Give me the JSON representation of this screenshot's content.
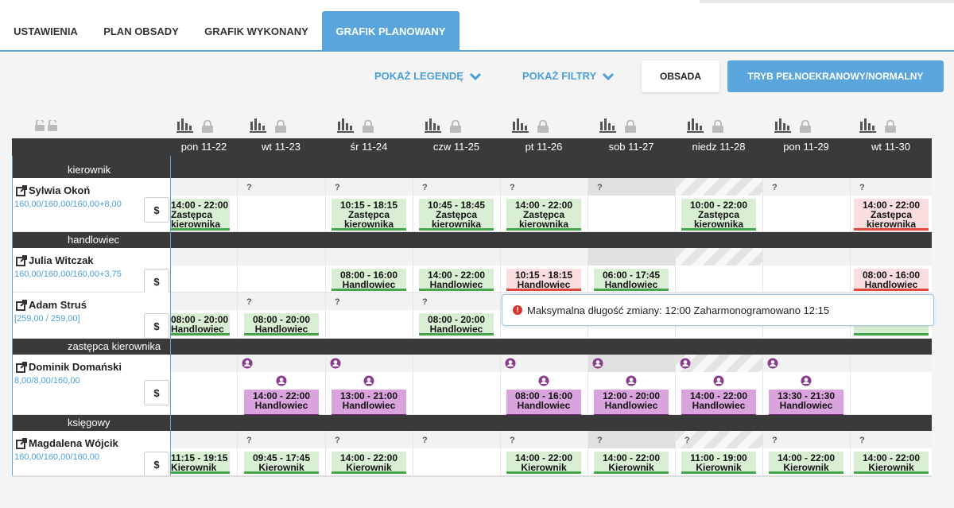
{
  "tabs": [
    "USTAWIENIA",
    "PLAN OBSADY",
    "GRAFIK WYKONANY",
    "GRAFIK PLANOWANY"
  ],
  "toolbar": {
    "legend": "POKAŻ LEGENDĘ",
    "filters": "POKAŻ FILTRY",
    "obsada": "OBSADA",
    "fullscreen": "TRYB PEŁNOEKRANOWY/NORMALNY"
  },
  "days": [
    "pon 11-22",
    "wt 11-23",
    "śr 11-24",
    "czw 11-25",
    "pt 11-26",
    "sob 11-27",
    "niedz 11-28",
    "pon 11-29",
    "wt 11-30"
  ],
  "roles": [
    "kierownik",
    "handlowiec",
    "zastępca kierownika",
    "księgowy"
  ],
  "people": [
    {
      "name": "Sylwia Okoń",
      "hours": "160,00/160,00/160,00+8,00",
      "dollar": "$"
    },
    {
      "name": "Julia Witczak",
      "hours": "160,00/160,00/160,00+3,75",
      "dollar": "$"
    },
    {
      "name": "Adam Struś",
      "hours": "[259,00 / 259,00]",
      "dollar": "$"
    },
    {
      "name": "Dominik Domański",
      "hours": "8,00/8,00/160,00",
      "dollar": "$"
    },
    {
      "name": "Magdalena Wójcik",
      "hours": "160,00/160,00/160,00",
      "dollar": "$"
    }
  ],
  "q": "?",
  "shifts": {
    "okon": [
      {
        "d": 0,
        "t": "14:00 - 22:00",
        "r": "Zastępca",
        "r2": "kierownika",
        "c": "g",
        "cut": true
      },
      {
        "d": 2,
        "t": "10:15 - 18:15",
        "r": "Zastępca",
        "r2": "kierownika",
        "c": "g"
      },
      {
        "d": 3,
        "t": "10:45 - 18:45",
        "r": "Zastępca",
        "r2": "kierownika",
        "c": "g"
      },
      {
        "d": 4,
        "t": "14:00 - 22:00",
        "r": "Zastępca",
        "r2": "kierownika",
        "c": "g"
      },
      {
        "d": 6,
        "t": "10:00 - 22:00",
        "r": "Zastępca",
        "r2": "kierownika",
        "c": "g"
      },
      {
        "d": 8,
        "t": "14:00 - 22:00",
        "r": "Zastępca",
        "r2": "kierownika",
        "c": "r"
      }
    ],
    "witczak": [
      {
        "d": 2,
        "t": "08:00 - 16:00",
        "r": "Handlowiec",
        "c": "g"
      },
      {
        "d": 3,
        "t": "14:00 - 22:00",
        "r": "Handlowiec",
        "c": "g"
      },
      {
        "d": 4,
        "t": "10:15 - 18:15",
        "r": "Handlowiec",
        "c": "r"
      },
      {
        "d": 5,
        "t": "06:00 - 17:45",
        "r": "Handlowiec",
        "c": "g"
      },
      {
        "d": 8,
        "t": "08:00 - 16:00",
        "r": "Handlowiec",
        "c": "r"
      }
    ],
    "strus": [
      {
        "d": 0,
        "t": "08:00 - 20:00",
        "r": "Handlowiec",
        "c": "g",
        "cut": true
      },
      {
        "d": 1,
        "t": "08:00 - 20:00",
        "r": "Handlowiec",
        "c": "g"
      },
      {
        "d": 3,
        "t": "08:00 - 20:00",
        "r": "Handlowiec",
        "c": "g"
      },
      {
        "d": 8,
        "t": "",
        "r": "Handlowiec",
        "c": "g"
      }
    ],
    "domanski": [
      {
        "d": 1,
        "t": "14:00 - 22:00",
        "r": "Handlowiec",
        "c": "p"
      },
      {
        "d": 2,
        "t": "13:00 - 21:00",
        "r": "Handlowiec",
        "c": "p"
      },
      {
        "d": 4,
        "t": "08:00 - 16:00",
        "r": "Handlowiec",
        "c": "p"
      },
      {
        "d": 5,
        "t": "12:00 - 20:00",
        "r": "Handlowiec",
        "c": "p"
      },
      {
        "d": 6,
        "t": "14:00 - 22:00",
        "r": "Handlowiec",
        "c": "p"
      },
      {
        "d": 7,
        "t": "13:30 - 21:30",
        "r": "Handlowiec",
        "c": "p"
      }
    ],
    "wojcik": [
      {
        "d": 0,
        "t": "11:15 - 19:15",
        "r": "Kierownik",
        "c": "g",
        "cut": true
      },
      {
        "d": 1,
        "t": "09:45 - 17:45",
        "r": "Kierownik",
        "c": "g"
      },
      {
        "d": 2,
        "t": "14:00 - 22:00",
        "r": "Kierownik",
        "c": "g"
      },
      {
        "d": 4,
        "t": "14:00 - 22:00",
        "r": "Kierownik",
        "c": "g"
      },
      {
        "d": 5,
        "t": "14:00 - 22:00",
        "r": "Kierownik",
        "c": "g"
      },
      {
        "d": 6,
        "t": "11:00 - 19:00",
        "r": "Kierownik",
        "c": "g"
      },
      {
        "d": 7,
        "t": "14:00 - 22:00",
        "r": "Kierownik",
        "c": "g"
      },
      {
        "d": 8,
        "t": "14:00 - 22:00",
        "r": "Kierownik",
        "c": "g"
      }
    ]
  },
  "tooltip": "Maksymalna długość zmiany: 12:00 Zaharmonogramowano 12:15",
  "colors": {
    "accent": "#5aa6dc",
    "green": "#d9efd4",
    "red": "#fadede",
    "purple": "#d9a4dd"
  }
}
